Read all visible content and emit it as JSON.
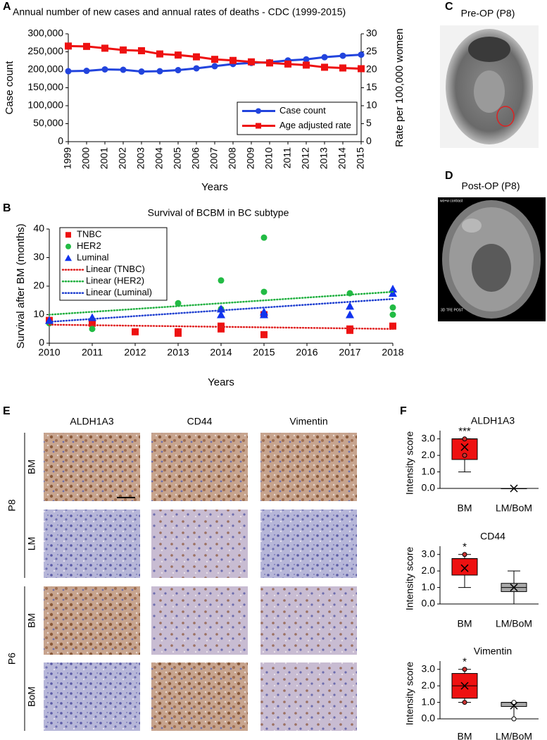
{
  "panel_letters": [
    "A",
    "B",
    "C",
    "D",
    "E",
    "F"
  ],
  "images": {
    "pre_op": {
      "title": "Pre-OP (P8)"
    },
    "post_op": {
      "title": "Post-OP (P8)",
      "overlay_top": "wo+w contrast",
      "overlay_bottom": "3D TFE POST"
    }
  },
  "histology": {
    "columns": [
      "ALDH1A3",
      "CD44",
      "Vimentin"
    ],
    "rows": [
      "BM",
      "LM",
      "BM",
      "BoM"
    ],
    "patients": [
      "P8",
      "P6"
    ]
  },
  "chart_data": [
    {
      "type": "line",
      "title": "Annual number of new cases and annual rates of deaths - CDC (1999-2015)",
      "x_label": "Years",
      "y_label": "Case count",
      "y2_label": "Rate per 100,000 women",
      "x": [
        1999,
        2000,
        2001,
        2002,
        2003,
        2004,
        2005,
        2006,
        2007,
        2008,
        2009,
        2010,
        2011,
        2012,
        2013,
        2014,
        2015
      ],
      "xlim": [
        1999,
        2015
      ],
      "xticks": [
        1999,
        2000,
        2001,
        2002,
        2003,
        2004,
        2005,
        2006,
        2007,
        2008,
        2009,
        2010,
        2011,
        2012,
        2013,
        2014,
        2015
      ],
      "ylim": [
        0,
        300000
      ],
      "yticks": [
        {
          "value": 0,
          "label": "0"
        },
        {
          "value": 50000,
          "label": "50,000"
        },
        {
          "value": 100000,
          "label": "100,000"
        },
        {
          "value": 150000,
          "label": "150,000"
        },
        {
          "value": 200000,
          "label": "200,000"
        },
        {
          "value": 250000,
          "label": "250,000"
        },
        {
          "value": 300000,
          "label": "300,000"
        }
      ],
      "y2lim": [
        0,
        30
      ],
      "y2ticks": [
        0,
        5,
        10,
        15,
        20,
        25,
        30
      ],
      "legend": "lower right",
      "grid": false,
      "series": [
        {
          "name": "Case count",
          "color": "#2244dd",
          "marker": "circle",
          "values": [
            196000,
            197000,
            201000,
            200000,
            195000,
            196000,
            199000,
            204000,
            210000,
            216000,
            219000,
            221000,
            226000,
            229000,
            235000,
            239000,
            242000
          ]
        },
        {
          "name": "Age adjusted rate",
          "color": "#ee1111",
          "marker": "square",
          "axis": "y2",
          "values": [
            26.6,
            26.5,
            26.0,
            25.5,
            25.3,
            24.4,
            24.1,
            23.6,
            22.9,
            22.6,
            22.2,
            21.9,
            21.6,
            21.3,
            20.7,
            20.5,
            20.3
          ]
        }
      ]
    },
    {
      "type": "scatter",
      "title": "Survival of BCBM in BC subtype",
      "x_label": "Years",
      "y_label": "Survival after BM (months)",
      "xlim": [
        2010,
        2018
      ],
      "xticks": [
        2010,
        2011,
        2012,
        2013,
        2014,
        2015,
        2016,
        2017,
        2018
      ],
      "ylim": [
        0,
        40
      ],
      "yticks": [
        0,
        10,
        20,
        30,
        40
      ],
      "legend": "upper left",
      "grid": false,
      "series": [
        {
          "name": "TNBC",
          "color": "#ee1111",
          "marker": "square",
          "x": [
            2010,
            2011,
            2012,
            2013,
            2013,
            2014,
            2014,
            2014,
            2015,
            2015,
            2017,
            2017,
            2018
          ],
          "values": [
            8,
            7,
            4,
            4,
            3.5,
            5,
            6,
            5.5,
            3,
            10,
            5,
            4.5,
            6
          ]
        },
        {
          "name": "HER2",
          "color": "#22bb44",
          "marker": "circle",
          "x": [
            2010,
            2011,
            2013,
            2014,
            2014,
            2015,
            2015,
            2017,
            2018,
            2018
          ],
          "values": [
            7,
            5,
            14,
            22,
            12,
            37,
            18,
            17.5,
            12.5,
            10
          ]
        },
        {
          "name": "Luminal",
          "color": "#1133ee",
          "marker": "triangle",
          "x": [
            2010,
            2011,
            2014,
            2014,
            2015,
            2015,
            2017,
            2017,
            2018,
            2018
          ],
          "values": [
            8,
            9,
            12,
            10,
            11,
            10,
            13,
            10,
            19,
            17.5
          ]
        },
        {
          "name": "Linear (TNBC)",
          "color": "#e02020",
          "line_style": "dotted",
          "x": [
            2010,
            2018
          ],
          "values": [
            6.5,
            5
          ]
        },
        {
          "name": "Linear (HER2)",
          "color": "#20b040",
          "line_style": "dotted",
          "x": [
            2010,
            2018
          ],
          "values": [
            10,
            18
          ]
        },
        {
          "name": "Linear (Luminal)",
          "color": "#2040d0",
          "line_style": "dotted",
          "x": [
            2010,
            2018
          ],
          "values": [
            7.5,
            15.5
          ]
        }
      ]
    },
    {
      "type": "box",
      "title": "ALDH1A3",
      "y_label": "Intensity score",
      "categories": [
        "BM",
        "LM/BoM"
      ],
      "ylim": [
        0,
        3.5
      ],
      "yticks": [
        {
          "value": 0,
          "label": "0.0"
        },
        {
          "value": 1,
          "label": "1.0"
        },
        {
          "value": 2,
          "label": "2.0"
        },
        {
          "value": 3,
          "label": "3.0"
        }
      ],
      "annotations": [
        "***",
        null
      ],
      "boxes": [
        {
          "color": "#ee1111",
          "min": 1,
          "q1": 1.75,
          "median": 3,
          "q3": 3,
          "max": 3,
          "mean": 2.5,
          "outliers": [
            3,
            2
          ]
        },
        {
          "color": "#aaaaaa",
          "min": 0,
          "q1": 0,
          "median": 0,
          "q3": 0,
          "max": 0,
          "mean": 0,
          "outliers": []
        }
      ]
    },
    {
      "type": "box",
      "title": "CD44",
      "y_label": "Intensity score",
      "categories": [
        "BM",
        "LM/BoM"
      ],
      "ylim": [
        0,
        3.5
      ],
      "yticks": [
        {
          "value": 0,
          "label": "0.0"
        },
        {
          "value": 1,
          "label": "1.0"
        },
        {
          "value": 2,
          "label": "2.0"
        },
        {
          "value": 3,
          "label": "3.0"
        }
      ],
      "annotations": [
        "*",
        null
      ],
      "boxes": [
        {
          "color": "#ee1111",
          "min": 1,
          "q1": 1.75,
          "median": 2.75,
          "q3": 2.75,
          "max": 3,
          "mean": 2.17,
          "outliers": [
            3
          ]
        },
        {
          "color": "#aaaaaa",
          "min": 0,
          "q1": 0.75,
          "median": 1,
          "q3": 1.25,
          "max": 2,
          "mean": 1,
          "outliers": []
        }
      ]
    },
    {
      "type": "box",
      "title": "Vimentin",
      "y_label": "Intensity score",
      "categories": [
        "BM",
        "LM/BoM"
      ],
      "ylim": [
        0,
        3.5
      ],
      "yticks": [
        {
          "value": 0,
          "label": "0.0"
        },
        {
          "value": 1,
          "label": "1.0"
        },
        {
          "value": 2,
          "label": "2.0"
        },
        {
          "value": 3,
          "label": "3.0"
        }
      ],
      "annotations": [
        "*",
        null
      ],
      "boxes": [
        {
          "color": "#ee1111",
          "min": 1,
          "q1": 1.25,
          "median": 2,
          "q3": 2.75,
          "max": 3,
          "mean": 2,
          "outliers": [
            3,
            1
          ]
        },
        {
          "color": "#aaaaaa",
          "min": 0,
          "q1": 0.75,
          "median": 1,
          "q3": 1,
          "max": 1,
          "mean": 0.8,
          "outliers": [
            1,
            0
          ]
        }
      ]
    }
  ]
}
